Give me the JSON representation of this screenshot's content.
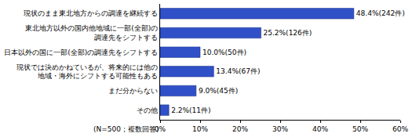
{
  "chart_data": {
    "type": "bar",
    "orientation": "horizontal",
    "categories": [
      "現状のまま東北地方からの調達を継続する",
      "東北地方以外の国内他地域に一部(全部)の\n調達先をシフトする",
      "日本以外の国に一部(全部)の調達先をシフトする",
      "現状では決めかねているが、将来的には他の\n地域・海外にシフトする可能性もある",
      "まだ分からない",
      "その他"
    ],
    "values": [
      48.4,
      25.2,
      10.0,
      13.4,
      9.0,
      2.2
    ],
    "value_labels": [
      "48.4%(242件)",
      "25.2%(126件)",
      "10.0%(50件)",
      "13.4%(67件)",
      "9.0%(45件)",
      "2.2%(11件)"
    ],
    "data_labels": true,
    "color": "#3050c8",
    "xlim": [
      0,
      60
    ],
    "xticks": [
      {
        "value": 0,
        "label": "0%"
      },
      {
        "value": 10,
        "label": "10%"
      },
      {
        "value": 20,
        "label": "20%"
      },
      {
        "value": 30,
        "label": "30%"
      },
      {
        "value": 40,
        "label": "40%"
      },
      {
        "value": 50,
        "label": "50%"
      },
      {
        "value": 60,
        "label": "60%"
      }
    ],
    "grid": false,
    "annotations": [
      "(N=500；複数回答)"
    ]
  }
}
